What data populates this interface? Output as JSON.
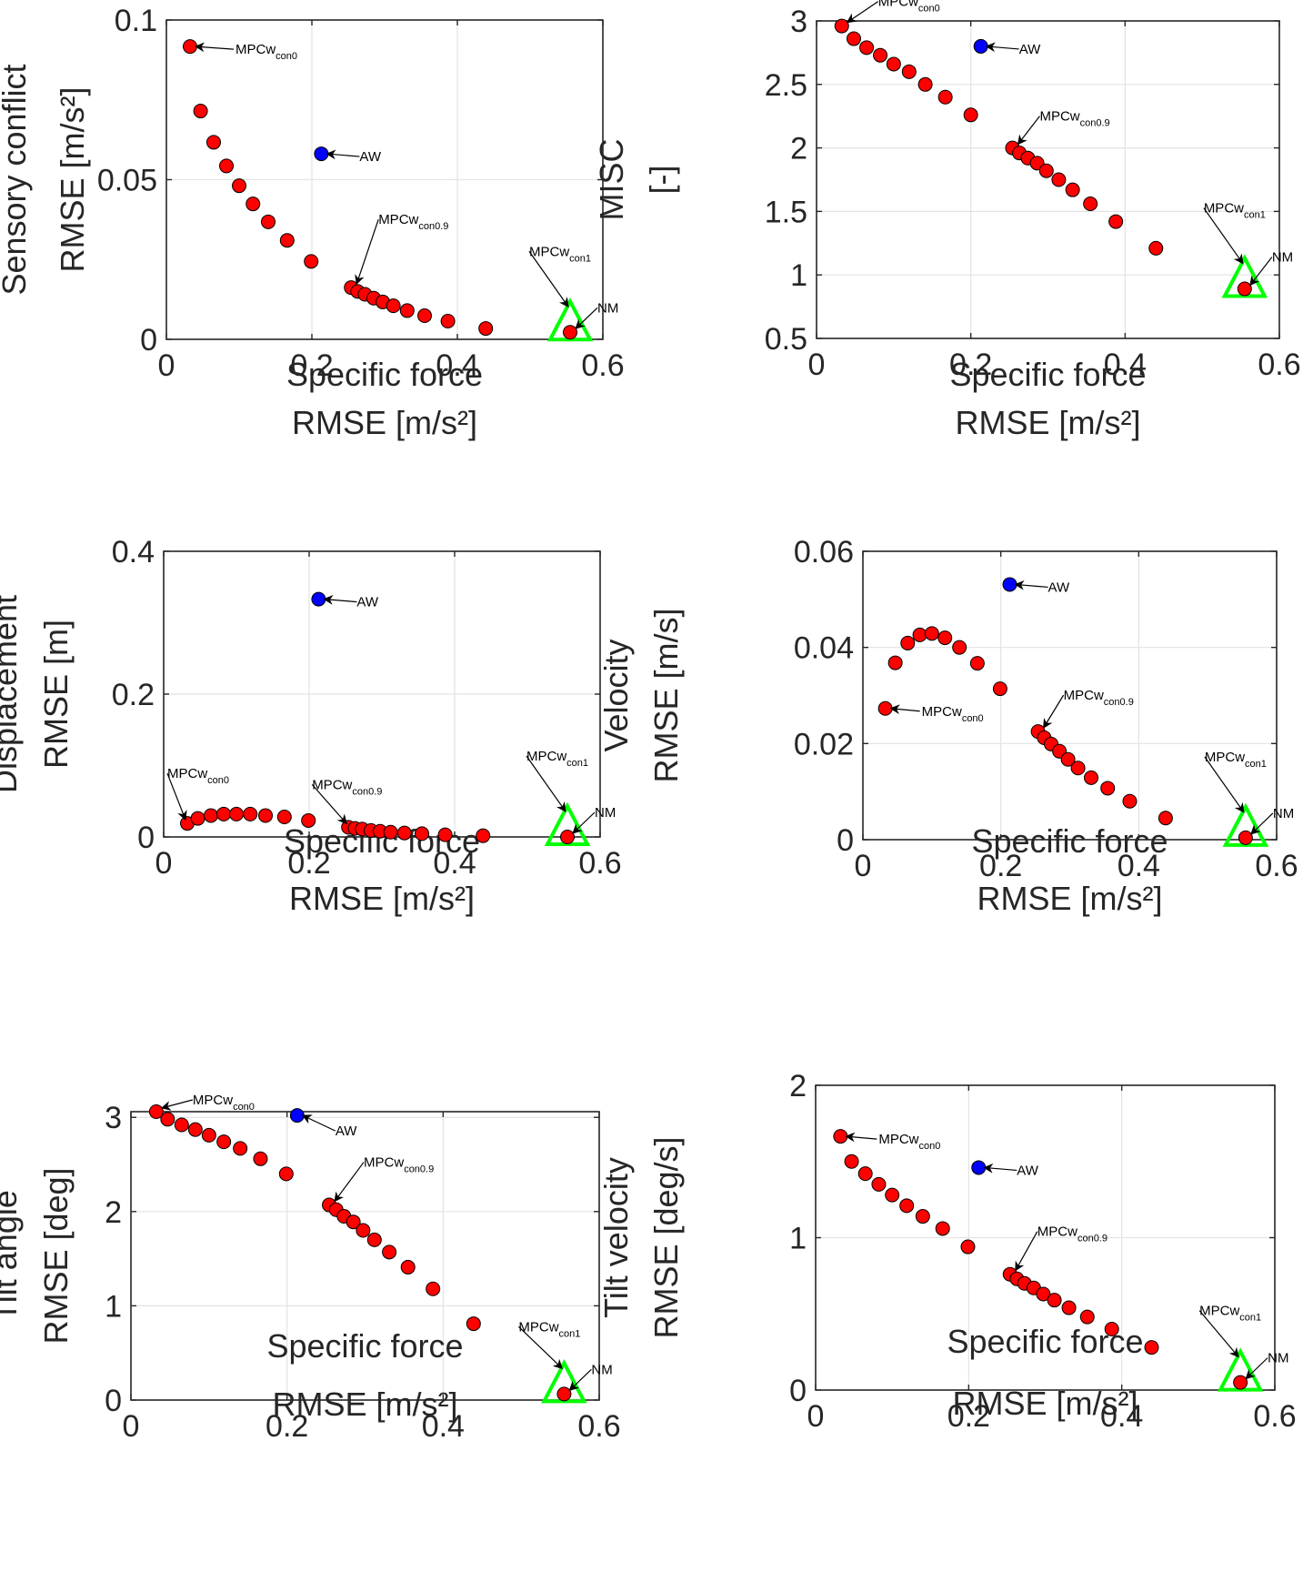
{
  "figure": {
    "annotation_labels": {
      "con0": {
        "main": "MPCw",
        "sub": "con0"
      },
      "con09": {
        "main": "MPCw",
        "sub": "con0.9"
      },
      "con1": {
        "main": "MPCw",
        "sub": "con1"
      },
      "aw": "AW",
      "nm": "NM"
    },
    "colors": {
      "mpc_series": "#ff0000",
      "aw_point": "#0000ff",
      "nm_marker": "#00ff00",
      "marker_edge": "#000000",
      "axis": "#262626",
      "grid": "#e3e3e3"
    }
  },
  "chart_data": [
    {
      "type": "scatter",
      "title": "",
      "xlabel": [
        "Specific force",
        "RMSE [m/s²]"
      ],
      "ylabel": [
        "Sensory conflict",
        "RMSE [m/s²]"
      ],
      "xlim": [
        0,
        0.6
      ],
      "ylim": [
        0,
        0.1
      ],
      "xticks": [
        0,
        0.2,
        0.4,
        0.6
      ],
      "xtick_labels": [
        "0",
        "0.2",
        "0.4",
        "0.6"
      ],
      "yticks": [
        0,
        0.05,
        0.1
      ],
      "ytick_labels": [
        "0",
        "0.05",
        "0.1"
      ],
      "grid": true,
      "series": [
        {
          "name": "MPCw",
          "marker": "circle",
          "color": "red",
          "x": [
            0.0325,
            0.047,
            0.065,
            0.0825,
            0.1,
            0.119,
            0.14,
            0.166,
            0.199,
            0.254,
            0.263,
            0.273,
            0.285,
            0.2975,
            0.312,
            0.331,
            0.355,
            0.387,
            0.439,
            0.555
          ],
          "y": [
            0.0917,
            0.0715,
            0.0617,
            0.0543,
            0.0481,
            0.0424,
            0.0368,
            0.031,
            0.0244,
            0.0162,
            0.015,
            0.0141,
            0.0129,
            0.0117,
            0.0105,
            0.009,
            0.0074,
            0.0057,
            0.0034,
            0.0022
          ]
        },
        {
          "name": "AW",
          "marker": "circle",
          "color": "blue",
          "x": [
            0.213
          ],
          "y": [
            0.0581
          ]
        },
        {
          "name": "NM",
          "marker": "triangle",
          "color": "green",
          "x": [
            0.555
          ],
          "y": [
            0.0022
          ]
        }
      ],
      "annotations": [
        {
          "label": "MPCw_con0",
          "point_index": 0
        },
        {
          "label": "MPCw_con0.9",
          "point_index": 9
        },
        {
          "label": "MPCw_con1",
          "point_index": 19
        },
        {
          "label": "AW",
          "series": "AW"
        },
        {
          "label": "NM",
          "series": "NM"
        }
      ]
    },
    {
      "type": "scatter",
      "title": "",
      "xlabel": [
        "Specific force",
        "RMSE [m/s²]"
      ],
      "ylabel": [
        "MISC",
        "[-]"
      ],
      "xlim": [
        0,
        0.6
      ],
      "ylim": [
        0.5,
        3
      ],
      "xticks": [
        0,
        0.2,
        0.4,
        0.6
      ],
      "xtick_labels": [
        "0",
        "0.2",
        "0.4",
        "0.6"
      ],
      "yticks": [
        0.5,
        1,
        1.5,
        2,
        2.5,
        3
      ],
      "ytick_labels": [
        "0.5",
        "1",
        "1.5",
        "2",
        "2.5",
        "3"
      ],
      "grid": true,
      "series": [
        {
          "name": "MPCw",
          "marker": "circle",
          "color": "red",
          "x": [
            0.0327,
            0.0483,
            0.0649,
            0.0826,
            0.1,
            0.12,
            0.141,
            0.167,
            0.2,
            0.254,
            0.263,
            0.274,
            0.286,
            0.298,
            0.314,
            0.332,
            0.355,
            0.388,
            0.44,
            0.555
          ],
          "y": [
            2.96,
            2.86,
            2.79,
            2.73,
            2.66,
            2.6,
            2.5,
            2.4,
            2.26,
            2.0,
            1.96,
            1.92,
            1.88,
            1.82,
            1.75,
            1.67,
            1.56,
            1.42,
            1.21,
            0.89
          ]
        },
        {
          "name": "AW",
          "marker": "circle",
          "color": "blue",
          "x": [
            0.213
          ],
          "y": [
            2.8
          ]
        },
        {
          "name": "NM",
          "marker": "triangle",
          "color": "green",
          "x": [
            0.555
          ],
          "y": [
            0.89
          ]
        }
      ],
      "annotations": [
        {
          "label": "MPCw_con0",
          "point_index": 0
        },
        {
          "label": "MPCw_con0.9",
          "point_index": 9
        },
        {
          "label": "MPCw_con1",
          "point_index": 19
        },
        {
          "label": "AW",
          "series": "AW"
        },
        {
          "label": "NM",
          "series": "NM"
        }
      ]
    },
    {
      "type": "scatter",
      "title": "",
      "xlabel": [
        "Specific force",
        "RMSE [m/s²]"
      ],
      "ylabel": [
        "Displacement",
        "RMSE  [m]"
      ],
      "xlim": [
        0,
        0.6
      ],
      "ylim": [
        0,
        0.4
      ],
      "xticks": [
        0,
        0.2,
        0.4,
        0.6
      ],
      "xtick_labels": [
        "0",
        "0.2",
        "0.4",
        "0.6"
      ],
      "yticks": [
        0,
        0.2,
        0.4
      ],
      "ytick_labels": [
        "0",
        "0.2",
        "0.4"
      ],
      "grid": true,
      "series": [
        {
          "name": "MPCw",
          "marker": "circle",
          "color": "red",
          "x": [
            0.0325,
            0.047,
            0.065,
            0.0825,
            0.1,
            0.119,
            0.14,
            0.166,
            0.199,
            0.254,
            0.263,
            0.273,
            0.285,
            0.2975,
            0.312,
            0.331,
            0.355,
            0.387,
            0.439,
            0.555
          ],
          "y": [
            0.019,
            0.026,
            0.03,
            0.032,
            0.032,
            0.032,
            0.03,
            0.028,
            0.023,
            0.0135,
            0.012,
            0.011,
            0.009,
            0.008,
            0.0067,
            0.0055,
            0.0046,
            0.003,
            0.0017,
            0.0
          ]
        },
        {
          "name": "AW",
          "marker": "circle",
          "color": "blue",
          "x": [
            0.213
          ],
          "y": [
            0.333
          ]
        },
        {
          "name": "NM",
          "marker": "triangle",
          "color": "green",
          "x": [
            0.555
          ],
          "y": [
            0.0
          ]
        }
      ],
      "annotations": [
        {
          "label": "MPCw_con0",
          "point_index": 0
        },
        {
          "label": "MPCw_con0.9",
          "point_index": 9
        },
        {
          "label": "MPCw_con1",
          "point_index": 19
        },
        {
          "label": "AW",
          "series": "AW"
        },
        {
          "label": "NM",
          "series": "NM"
        }
      ]
    },
    {
      "type": "scatter",
      "title": "",
      "xlabel": [
        "Specific force",
        "RMSE [m/s²]"
      ],
      "ylabel": [
        "Velocity",
        "RMSE [m/s]"
      ],
      "xlim": [
        0,
        0.6
      ],
      "ylim": [
        0,
        0.06
      ],
      "xticks": [
        0,
        0.2,
        0.4,
        0.6
      ],
      "xtick_labels": [
        "0",
        "0.2",
        "0.4",
        "0.6"
      ],
      "yticks": [
        0,
        0.02,
        0.04,
        0.06
      ],
      "ytick_labels": [
        "0",
        "0.02",
        "0.04",
        "0.06"
      ],
      "grid": true,
      "series": [
        {
          "name": "MPCw",
          "marker": "circle",
          "color": "red",
          "x": [
            0.0325,
            0.047,
            0.065,
            0.0825,
            0.1,
            0.119,
            0.14,
            0.166,
            0.199,
            0.254,
            0.263,
            0.273,
            0.285,
            0.2975,
            0.312,
            0.331,
            0.355,
            0.387,
            0.439,
            0.555
          ],
          "y": [
            0.0273,
            0.0368,
            0.0409,
            0.0426,
            0.0429,
            0.042,
            0.04,
            0.0367,
            0.0314,
            0.0225,
            0.0212,
            0.0199,
            0.0184,
            0.0167,
            0.0149,
            0.0129,
            0.0107,
            0.008,
            0.0045,
            0.0004
          ]
        },
        {
          "name": "AW",
          "marker": "circle",
          "color": "blue",
          "x": [
            0.213
          ],
          "y": [
            0.0531
          ]
        },
        {
          "name": "NM",
          "marker": "triangle",
          "color": "green",
          "x": [
            0.555
          ],
          "y": [
            0.0004
          ]
        }
      ],
      "annotations": [
        {
          "label": "MPCw_con0",
          "point_index": 0
        },
        {
          "label": "MPCw_con0.9",
          "point_index": 9
        },
        {
          "label": "MPCw_con1",
          "point_index": 19
        },
        {
          "label": "AW",
          "series": "AW"
        },
        {
          "label": "NM",
          "series": "NM"
        }
      ]
    },
    {
      "type": "scatter",
      "title": "",
      "xlabel": [
        "Specific force",
        "RMSE  [m/s²]"
      ],
      "ylabel": [
        "Tilt angle",
        "RMSE [deg]"
      ],
      "xlim": [
        0,
        0.6
      ],
      "ylim": [
        0,
        3.06
      ],
      "xticks": [
        0,
        0.2,
        0.4,
        0.6
      ],
      "xtick_labels": [
        "0",
        "0.2",
        "0.4",
        "0.6"
      ],
      "yticks": [
        0,
        1,
        2,
        3
      ],
      "ytick_labels": [
        "0",
        "1",
        "2",
        "3"
      ],
      "grid": true,
      "series": [
        {
          "name": "MPCw",
          "marker": "circle",
          "color": "red",
          "x": [
            0.0325,
            0.047,
            0.065,
            0.0825,
            0.1,
            0.119,
            0.14,
            0.166,
            0.199,
            0.254,
            0.263,
            0.273,
            0.285,
            0.2975,
            0.312,
            0.331,
            0.355,
            0.387,
            0.439,
            0.555
          ],
          "y": [
            3.06,
            2.98,
            2.92,
            2.87,
            2.81,
            2.74,
            2.67,
            2.56,
            2.4,
            2.07,
            2.02,
            1.95,
            1.89,
            1.8,
            1.7,
            1.57,
            1.41,
            1.18,
            0.81,
            0.064
          ]
        },
        {
          "name": "AW",
          "marker": "circle",
          "color": "blue",
          "x": [
            0.213
          ],
          "y": [
            3.02
          ]
        },
        {
          "name": "NM",
          "marker": "triangle",
          "color": "green",
          "x": [
            0.555
          ],
          "y": [
            0.064
          ]
        }
      ],
      "annotations": [
        {
          "label": "MPCw_con0",
          "point_index": 0
        },
        {
          "label": "MPCw_con0.9",
          "point_index": 9
        },
        {
          "label": "MPCw_con1",
          "point_index": 19
        },
        {
          "label": "AW",
          "series": "AW"
        },
        {
          "label": "NM",
          "series": "NM"
        }
      ]
    },
    {
      "type": "scatter",
      "title": "",
      "xlabel": [
        "Specific force",
        "RMSE [m/s²]"
      ],
      "ylabel": [
        "Tilt velocity",
        "RMSE [deg/s]"
      ],
      "xlim": [
        0,
        0.6
      ],
      "ylim": [
        0,
        2
      ],
      "xticks": [
        0,
        0.2,
        0.4,
        0.6
      ],
      "xtick_labels": [
        "0",
        "0.2",
        "0.4",
        "0.6"
      ],
      "yticks": [
        0,
        1,
        2
      ],
      "ytick_labels": [
        "0",
        "1",
        "2"
      ],
      "grid": true,
      "series": [
        {
          "name": "MPCw",
          "marker": "circle",
          "color": "red",
          "x": [
            0.0325,
            0.047,
            0.065,
            0.0825,
            0.1,
            0.119,
            0.14,
            0.166,
            0.199,
            0.254,
            0.263,
            0.273,
            0.285,
            0.2975,
            0.312,
            0.331,
            0.355,
            0.387,
            0.439,
            0.555
          ],
          "y": [
            1.665,
            1.5,
            1.42,
            1.35,
            1.28,
            1.21,
            1.14,
            1.06,
            0.94,
            0.76,
            0.73,
            0.7,
            0.67,
            0.63,
            0.59,
            0.54,
            0.48,
            0.4,
            0.28,
            0.05
          ]
        },
        {
          "name": "AW",
          "marker": "circle",
          "color": "blue",
          "x": [
            0.213
          ],
          "y": [
            1.46
          ]
        },
        {
          "name": "NM",
          "marker": "triangle",
          "color": "green",
          "x": [
            0.555
          ],
          "y": [
            0.05
          ]
        }
      ],
      "annotations": [
        {
          "label": "MPCw_con0",
          "point_index": 0
        },
        {
          "label": "MPCw_con0.9",
          "point_index": 9
        },
        {
          "label": "MPCw_con1",
          "point_index": 19
        },
        {
          "label": "AW",
          "series": "AW"
        },
        {
          "label": "NM",
          "series": "NM"
        }
      ]
    }
  ]
}
